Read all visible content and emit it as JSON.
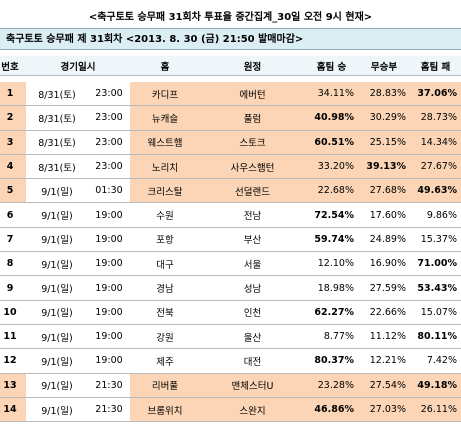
{
  "title": "<축구토토 승무패 31회차 투표율 중간집계_30일 오전 9시 현재>",
  "banner": "축구토토 승무패 제 31회차 <2013. 8. 30 (금) 21:50 발매마감>",
  "table": {
    "headers": [
      "번호",
      "경기일시",
      "홈",
      "원정",
      "홈팀 승",
      "무승부",
      "홈팀 패"
    ],
    "rows": [
      [
        "1",
        "8/31(토)",
        "23:00",
        "카디프",
        "에버턴",
        "34.11%",
        "28.83%",
        "37.06%"
      ],
      [
        "2",
        "8/31(토)",
        "23:00",
        "뉴캐슬",
        "풀럼",
        "40.98%",
        "30.29%",
        "28.73%"
      ],
      [
        "3",
        "8/31(토)",
        "23:00",
        "웨스트햄",
        "스토크",
        "60.51%",
        "25.15%",
        "14.34%"
      ],
      [
        "4",
        "8/31(토)",
        "23:00",
        "노리치",
        "사우스햄턴",
        "33.20%",
        "39.13%",
        "27.67%"
      ],
      [
        "5",
        "9/1(일)",
        "01:30",
        "크리스탈",
        "선덜랜드",
        "22.68%",
        "27.68%",
        "49.63%"
      ],
      [
        "6",
        "9/1(일)",
        "19:00",
        "수원",
        "전남",
        "72.54%",
        "17.60%",
        "9.86%"
      ],
      [
        "7",
        "9/1(일)",
        "19:00",
        "포항",
        "부산",
        "59.74%",
        "24.89%",
        "15.37%"
      ],
      [
        "8",
        "9/1(일)",
        "19:00",
        "대구",
        "서울",
        "12.10%",
        "16.90%",
        "71.00%"
      ],
      [
        "9",
        "9/1(일)",
        "19:00",
        "경남",
        "성남",
        "18.98%",
        "27.59%",
        "53.43%"
      ],
      [
        "10",
        "9/1(일)",
        "19:00",
        "전북",
        "인천",
        "62.27%",
        "22.66%",
        "15.07%"
      ],
      [
        "11",
        "9/1(일)",
        "19:00",
        "강원",
        "울산",
        "8.77%",
        "11.12%",
        "80.11%"
      ],
      [
        "12",
        "9/1(일)",
        "19:00",
        "제주",
        "대전",
        "80.37%",
        "12.21%",
        "7.42%"
      ],
      [
        "13",
        "9/1(일)",
        "21:30",
        "리버풀",
        "맨체스터U",
        "23.28%",
        "27.54%",
        "49.18%"
      ],
      [
        "14",
        "9/1(일)",
        "21:30",
        "브롬위치",
        "스완지",
        "46.86%",
        "27.03%",
        "26.11%"
      ]
    ],
    "bold": [
      7,
      5,
      5,
      6,
      7,
      5,
      5,
      7,
      7,
      5,
      7,
      5,
      7,
      5
    ],
    "shaded": [
      true,
      true,
      true,
      true,
      true,
      false,
      false,
      false,
      false,
      false,
      false,
      false,
      true,
      true
    ]
  }
}
